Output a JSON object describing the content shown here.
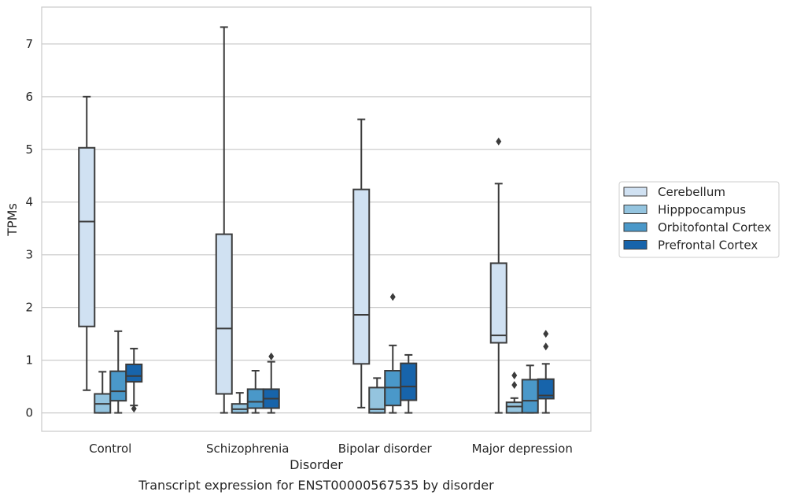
{
  "chart_data": {
    "type": "boxplot",
    "xlabel": "Disorder",
    "ylabel": "TPMs",
    "caption": "Transcript expression for ENST00000567535 by disorder",
    "ylim": [
      -0.35,
      7.7
    ],
    "yticks": [
      0,
      1,
      2,
      3,
      4,
      5,
      6,
      7
    ],
    "grid": true,
    "legend_position": "right",
    "categories": [
      "Control",
      "Schizophrenia",
      "Bipolar disorder",
      "Major depression"
    ],
    "series": [
      {
        "name": "Cerebellum",
        "color": "#d0e1f2",
        "boxes": [
          {
            "whislo": 0.43,
            "q1": 1.64,
            "med": 3.63,
            "q3": 5.03,
            "whishi": 6.0,
            "fliers": []
          },
          {
            "whislo": 0.0,
            "q1": 0.36,
            "med": 1.6,
            "q3": 3.39,
            "whishi": 7.32,
            "fliers": []
          },
          {
            "whislo": 0.1,
            "q1": 0.93,
            "med": 1.86,
            "q3": 4.24,
            "whishi": 5.57,
            "fliers": []
          },
          {
            "whislo": 0.0,
            "q1": 1.33,
            "med": 1.47,
            "q3": 2.84,
            "whishi": 4.35,
            "fliers": [
              5.15
            ]
          }
        ]
      },
      {
        "name": "Hipppocampus",
        "color": "#94c4df",
        "boxes": [
          {
            "whislo": 0.0,
            "q1": 0.0,
            "med": 0.17,
            "q3": 0.36,
            "whishi": 0.78,
            "fliers": []
          },
          {
            "whislo": 0.0,
            "q1": 0.0,
            "med": 0.07,
            "q3": 0.17,
            "whishi": 0.38,
            "fliers": []
          },
          {
            "whislo": 0.0,
            "q1": 0.0,
            "med": 0.07,
            "q3": 0.48,
            "whishi": 0.66,
            "fliers": []
          },
          {
            "whislo": 0.0,
            "q1": 0.0,
            "med": 0.12,
            "q3": 0.2,
            "whishi": 0.28,
            "fliers": [
              0.53,
              0.71
            ]
          }
        ]
      },
      {
        "name": "Orbitofontal Cortex",
        "color": "#4a98c9",
        "boxes": [
          {
            "whislo": 0.0,
            "q1": 0.23,
            "med": 0.41,
            "q3": 0.79,
            "whishi": 1.55,
            "fliers": []
          },
          {
            "whislo": 0.0,
            "q1": 0.09,
            "med": 0.21,
            "q3": 0.45,
            "whishi": 0.8,
            "fliers": []
          },
          {
            "whislo": 0.0,
            "q1": 0.14,
            "med": 0.48,
            "q3": 0.8,
            "whishi": 1.28,
            "fliers": [
              2.2
            ]
          },
          {
            "whislo": 0.0,
            "q1": 0.0,
            "med": 0.23,
            "q3": 0.63,
            "whishi": 0.9,
            "fliers": []
          }
        ]
      },
      {
        "name": "Prefrontal Cortex",
        "color": "#1764ab",
        "boxes": [
          {
            "whislo": 0.14,
            "q1": 0.59,
            "med": 0.7,
            "q3": 0.92,
            "whishi": 1.22,
            "fliers": [
              0.08
            ]
          },
          {
            "whislo": 0.0,
            "q1": 0.09,
            "med": 0.27,
            "q3": 0.45,
            "whishi": 0.97,
            "fliers": [
              1.07
            ]
          },
          {
            "whislo": 0.0,
            "q1": 0.24,
            "med": 0.5,
            "q3": 0.94,
            "whishi": 1.1,
            "fliers": []
          },
          {
            "whislo": 0.0,
            "q1": 0.27,
            "med": 0.33,
            "q3": 0.64,
            "whishi": 0.93,
            "fliers": [
              1.26,
              1.5
            ]
          }
        ]
      }
    ]
  }
}
